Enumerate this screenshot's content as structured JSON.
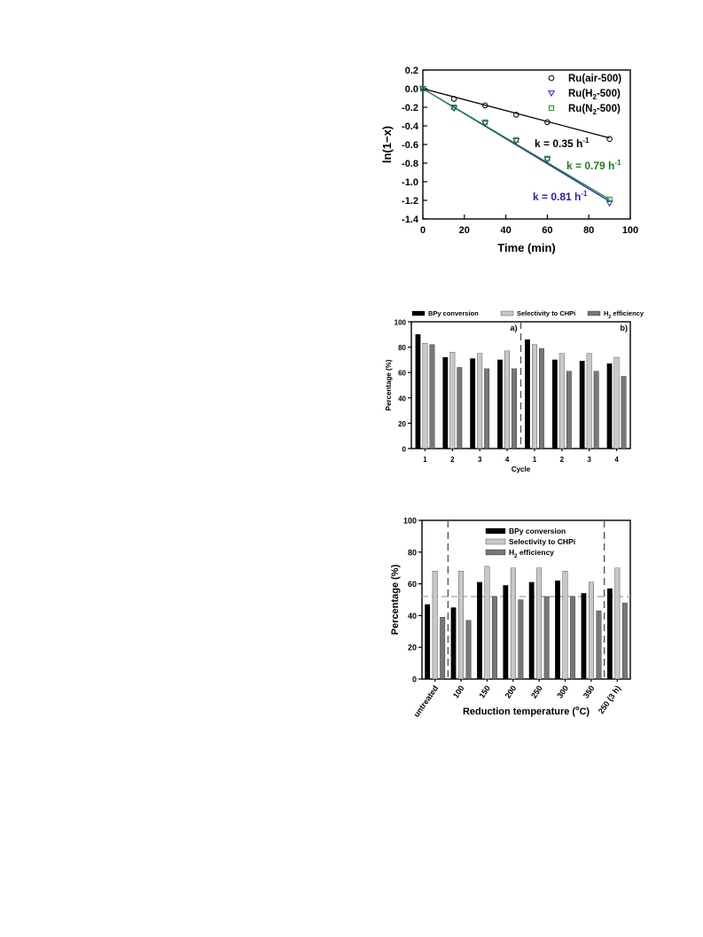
{
  "chart_data": [
    {
      "type": "scatter",
      "xlabel": "Time (min)",
      "ylabel": "ln(1−x)",
      "xlim": [
        0,
        100
      ],
      "ylim": [
        -1.4,
        0.2
      ],
      "xticks": [
        "0",
        "20",
        "40",
        "60",
        "80",
        "100"
      ],
      "yticks": [
        "0.2",
        "0.0",
        "-0.2",
        "-0.4",
        "-0.6",
        "-0.8",
        "-1.0",
        "-1.2",
        "-1.4"
      ],
      "legend_position": "top-right",
      "series": [
        {
          "name": "Ru(air-500)",
          "marker": "circle",
          "color": "#000000",
          "x": [
            0,
            15,
            30,
            45,
            60,
            90
          ],
          "y": [
            0,
            -0.11,
            -0.18,
            -0.28,
            -0.36,
            -0.54
          ],
          "fit": {
            "x": [
              0,
              90
            ],
            "y": [
              0,
              -0.53
            ]
          }
        },
        {
          "name": "Ru(H2-500)",
          "marker": "triangle-down",
          "color": "#2323c8",
          "x": [
            0,
            15,
            30,
            45,
            60,
            90
          ],
          "y": [
            0,
            -0.21,
            -0.37,
            -0.56,
            -0.76,
            -1.23
          ],
          "fit": {
            "x": [
              0,
              90
            ],
            "y": [
              0,
              -1.21
            ]
          }
        },
        {
          "name": "Ru(N2-500)",
          "marker": "square",
          "color": "#1f8a1f",
          "x": [
            0,
            15,
            30,
            45,
            60,
            90
          ],
          "y": [
            0,
            -0.2,
            -0.36,
            -0.55,
            -0.75,
            -1.19
          ],
          "fit": {
            "x": [
              0,
              90
            ],
            "y": [
              0,
              -1.19
            ]
          }
        }
      ],
      "legend": [
        {
          "prefix": "Ru(air-500)",
          "sub": "",
          "suffix": ""
        },
        {
          "prefix": "Ru(H",
          "sub": "2",
          "suffix": "-500)"
        },
        {
          "prefix": "Ru(N",
          "sub": "2",
          "suffix": "-500)"
        }
      ],
      "annotations": [
        {
          "text": "k = 0.35 h",
          "sup": "-1",
          "color": "#000000"
        },
        {
          "text": "k = 0.79 h",
          "sup": "-1",
          "color": "#1f7a1f"
        },
        {
          "text": "k = 0.81 h",
          "sup": "-1",
          "color": "#2323b4"
        }
      ]
    },
    {
      "type": "bar",
      "ylabel": "Percentage (%)",
      "xlabel": "Cycle",
      "ylim": [
        0,
        100
      ],
      "yticks": [
        "0",
        "20",
        "40",
        "60",
        "80",
        "100"
      ],
      "categories": [
        "1",
        "2",
        "3",
        "4",
        "1",
        "2",
        "3",
        "4"
      ],
      "panel_labels": [
        "a)",
        "b)"
      ],
      "divider_after_index": 3,
      "legend_position": "top",
      "legend": [
        {
          "prefix": "BPy conversion",
          "sub": "",
          "suffix": ""
        },
        {
          "prefix": "Selectivity to CHPi",
          "sub": "",
          "suffix": ""
        },
        {
          "prefix": "H",
          "sub": "2",
          "suffix": " efficiency"
        }
      ],
      "series": [
        {
          "name": "BPy conversion",
          "color": "#000000",
          "values": [
            90,
            72,
            71,
            70,
            86,
            70,
            69,
            67
          ]
        },
        {
          "name": "Selectivity to CHPi",
          "color": "#c8c8c8",
          "values": [
            83,
            76,
            75,
            77,
            82,
            75,
            75,
            72
          ]
        },
        {
          "name": "H2 efficiency",
          "color": "#777777",
          "values": [
            82,
            64,
            63,
            63,
            79,
            61,
            61,
            57
          ]
        }
      ]
    },
    {
      "type": "bar",
      "ylabel": "Percentage (%)",
      "xlabel": "Reduction temperature (°C)",
      "xlabel_parts": {
        "prefix": "Reduction temperature (",
        "sup": "o",
        "suffix": "C)"
      },
      "ylim": [
        0,
        100
      ],
      "yticks": [
        "0",
        "20",
        "40",
        "60",
        "80",
        "100"
      ],
      "categories": [
        "untreated",
        "100",
        "150",
        "200",
        "250",
        "300",
        "350",
        "250 (3 h)"
      ],
      "reference_line_y": 52,
      "dividers_after_index": [
        0,
        6
      ],
      "legend_position": "top",
      "legend": [
        {
          "prefix": "BPy conversion",
          "sub": "",
          "suffix": ""
        },
        {
          "prefix": "Selectivity to CHPi",
          "sub": "",
          "suffix": ""
        },
        {
          "prefix": "H",
          "sub": "2",
          "suffix": " efficiency"
        }
      ],
      "series": [
        {
          "name": "BPy conversion",
          "color": "#000000",
          "values": [
            47,
            45,
            61,
            59,
            61,
            62,
            54,
            57
          ]
        },
        {
          "name": "Selectivity to CHPi",
          "color": "#c8c8c8",
          "values": [
            68,
            68,
            71,
            70,
            70,
            68,
            61,
            70
          ]
        },
        {
          "name": "H2 efficiency",
          "color": "#777777",
          "values": [
            39,
            37,
            52,
            50,
            52,
            52,
            43,
            48
          ]
        }
      ]
    }
  ]
}
